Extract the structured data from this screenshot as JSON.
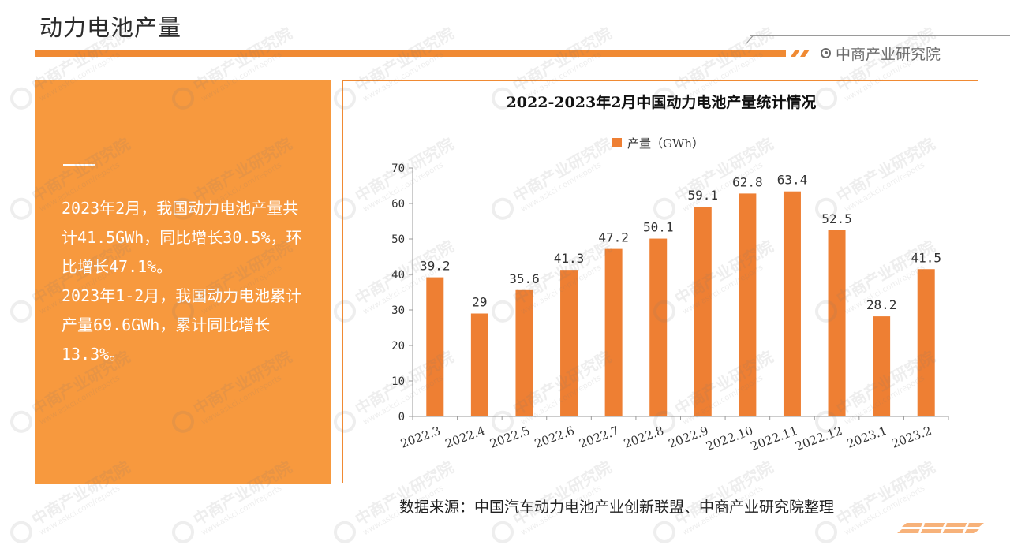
{
  "header": {
    "title": "动力电池产量",
    "brand": "中商产业研究院"
  },
  "left_panel": {
    "paragraphs": [
      "2023年2月，我国动力电池产量共计41.5GWh，同比增长30.5%，环比增长47.1%。",
      "2023年1-2月，我国动力电池累计产量69.6GWh，累计同比增长13.3%。"
    ]
  },
  "footer": {
    "source": "数据来源：中国汽车动力电池产业创新联盟、中商产业研究院整理"
  },
  "watermark": {
    "text": "中商产业研究院",
    "url": "www.askci.com/reports"
  },
  "colors": {
    "accent": "#f08a33",
    "panel": "#f7993e",
    "bar": "#ee7f33"
  },
  "chart_data": {
    "type": "bar",
    "title": "2022-2023年2月中国动力电池产量统计情况",
    "legend": "top-center",
    "categories": [
      "2022.3",
      "2022.4",
      "2022.5",
      "2022.6",
      "2022.7",
      "2022.8",
      "2022.9",
      "2022.10",
      "2022.11",
      "2022.12",
      "2023.1",
      "2023.2"
    ],
    "series": [
      {
        "name": "产量（GWh）",
        "values": [
          39.2,
          29,
          35.6,
          41.3,
          47.2,
          50.1,
          59.1,
          62.8,
          63.4,
          52.5,
          28.2,
          41.5
        ],
        "labels": [
          "39.2",
          "29",
          "35.6",
          "41.3",
          "47.2",
          "50.1",
          "59.1",
          "62.8",
          "63.4",
          "52.5",
          "28.2",
          "41.5"
        ]
      }
    ],
    "ylim": [
      0,
      70
    ],
    "yticks": [
      0,
      10,
      20,
      30,
      40,
      50,
      60,
      70
    ],
    "grid": false
  }
}
